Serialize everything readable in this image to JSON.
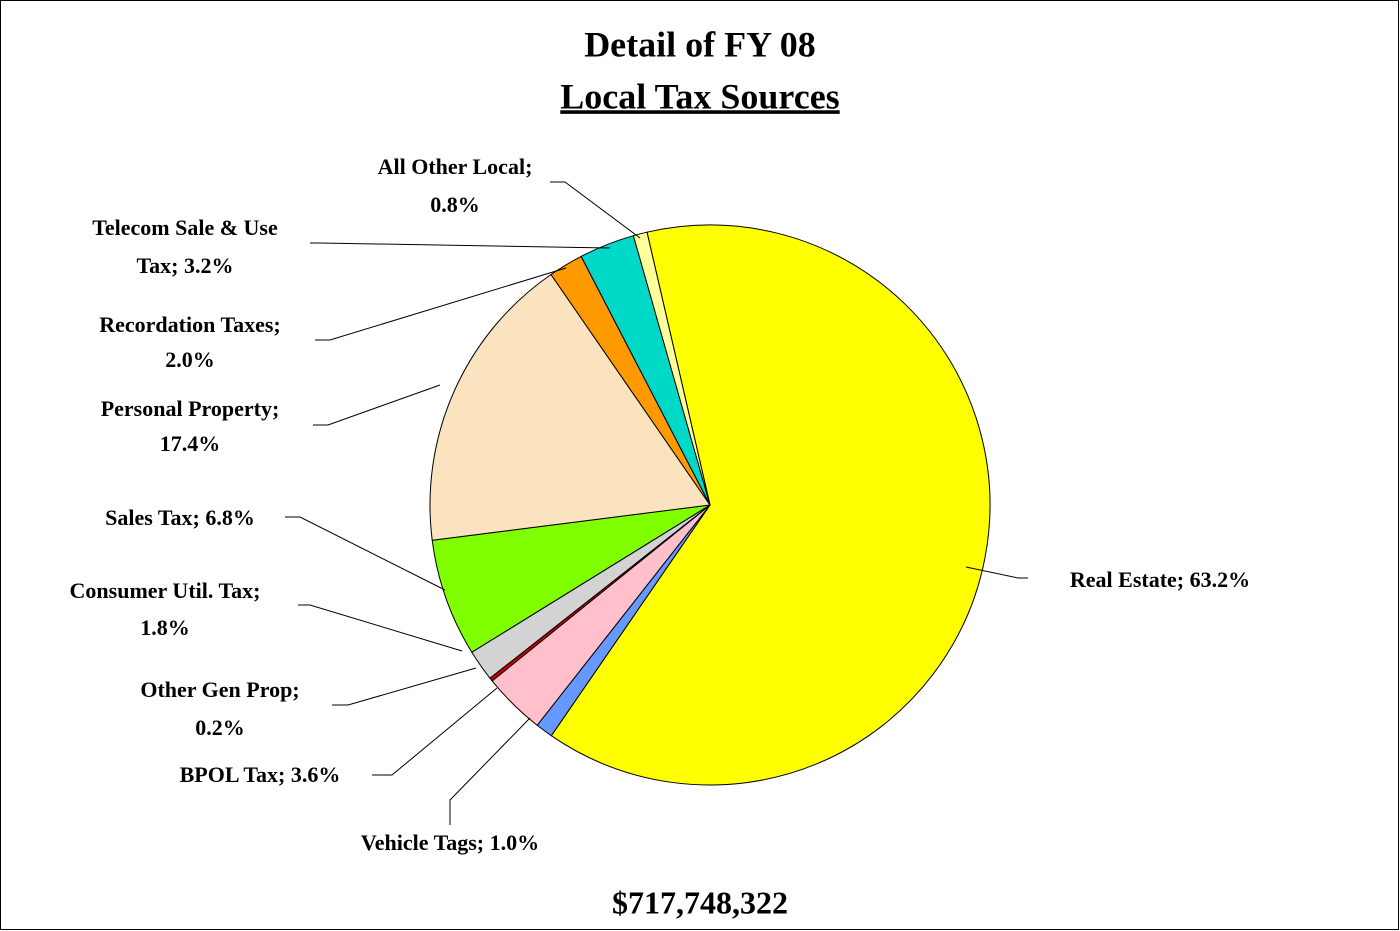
{
  "chart_data": {
    "type": "pie",
    "title": "Detail of FY 08",
    "subtitle": "Local Tax Sources",
    "total": "$717,748,322",
    "labels": [
      [
        "Real Estate; 63.2%"
      ],
      [
        "Vehicle Tags; 1.0%"
      ],
      [
        "BPOL Tax; 3.6%"
      ],
      [
        "Other Gen Prop;",
        "0.2%"
      ],
      [
        "Consumer Util. Tax;",
        "1.8%"
      ],
      [
        "Sales Tax; 6.8%"
      ],
      [
        "Personal Property;",
        "17.4%"
      ],
      [
        "Recordation Taxes;",
        "2.0%"
      ],
      [
        "Telecom Sale & Use",
        "Tax; 3.2%"
      ],
      [
        "All Other Local;",
        "0.8%"
      ]
    ],
    "values": [
      63.2,
      1.0,
      3.6,
      0.2,
      1.8,
      6.8,
      17.4,
      2.0,
      3.2,
      0.8
    ],
    "colors": [
      "#ffff00",
      "#6699ff",
      "#ffc0cb",
      "#cc0000",
      "#d3d3d3",
      "#80ff00",
      "#fbe3c0",
      "#ff9900",
      "#00d8c8",
      "#ffff99"
    ]
  }
}
